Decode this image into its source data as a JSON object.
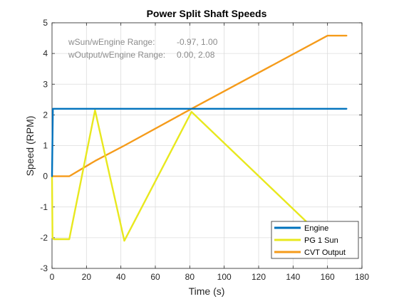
{
  "chart_data": {
    "type": "line",
    "title": "Power Split Shaft Speeds",
    "xlabel": "Time (s)",
    "ylabel": "Speed (RPM)",
    "xlim": [
      0,
      180
    ],
    "ylim": [
      -3,
      5
    ],
    "xticks": [
      0,
      20,
      40,
      60,
      80,
      100,
      120,
      140,
      160,
      180
    ],
    "yticks": [
      -3,
      -2,
      -1,
      0,
      1,
      2,
      3,
      4,
      5
    ],
    "grid": true,
    "legend_position": "bottom-right",
    "annotations": [
      {
        "label": "wSun/wEngine Range:",
        "value": "-0.97, 1.00"
      },
      {
        "label": "wOutput/wEngine Range:",
        "value": "0.00, 2.08"
      }
    ],
    "series": [
      {
        "name": "Engine",
        "color": "#0072bd",
        "x": [
          0,
          0.5,
          1,
          171
        ],
        "y": [
          0,
          2.2,
          2.2,
          2.2
        ]
      },
      {
        "name": "PG 1 Sun",
        "color": "#e8e81e",
        "x": [
          0,
          0.3,
          1,
          10,
          25,
          42,
          81,
          150
        ],
        "y": [
          0,
          -2.0,
          -2.05,
          -2.05,
          2.15,
          -2.1,
          2.1,
          -1.6
        ]
      },
      {
        "name": "CVT Output",
        "color": "#f59b1a",
        "x": [
          0,
          1,
          10,
          25,
          42,
          81,
          160,
          171
        ],
        "y": [
          0,
          0,
          0,
          0.5,
          1.0,
          2.2,
          4.58,
          4.58
        ]
      }
    ]
  }
}
